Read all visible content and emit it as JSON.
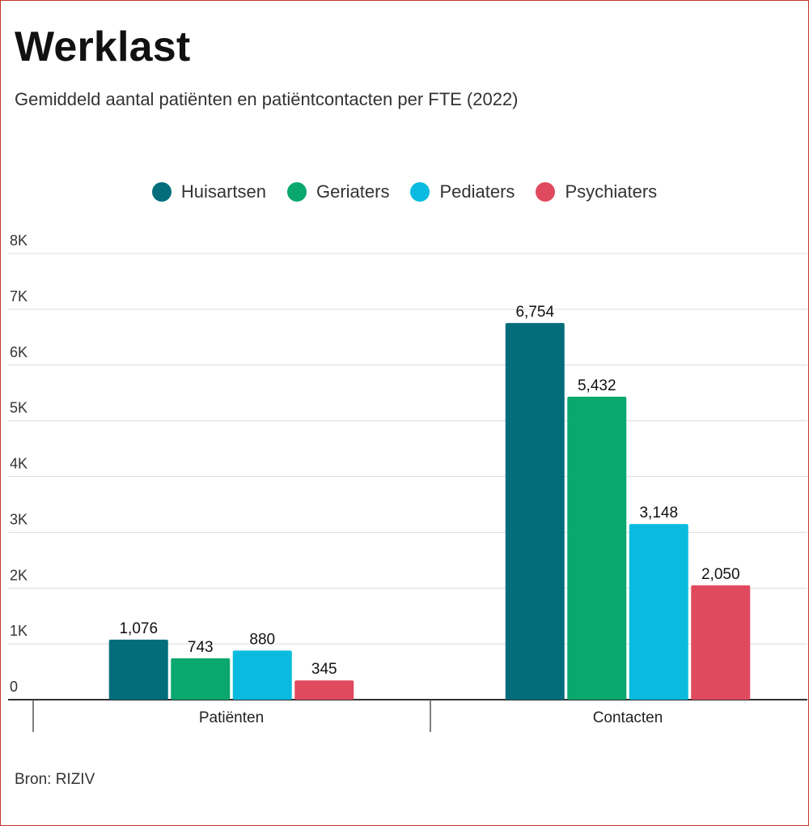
{
  "title": "Werklast",
  "subtitle": "Gemiddeld aantal patiënten en patiëntcontacten per FTE (2022)",
  "source": "Bron: RIZIV",
  "chart_data": {
    "type": "bar",
    "title": "Werklast",
    "subtitle": "Gemiddeld aantal patiënten en patiëntcontacten per FTE (2022)",
    "categories": [
      "Patiënten",
      "Contacten"
    ],
    "series": [
      {
        "name": "Huisartsen",
        "color": "#036d7c",
        "values": [
          1076,
          6754
        ],
        "labels": [
          "1,076",
          "6,754"
        ]
      },
      {
        "name": "Geriaters",
        "color": "#0aa86e",
        "values": [
          743,
          5432
        ],
        "labels": [
          "743",
          "5,432"
        ]
      },
      {
        "name": "Pediaters",
        "color": "#0abbdf",
        "values": [
          880,
          3148
        ],
        "labels": [
          "880",
          "3,148"
        ]
      },
      {
        "name": "Psychiaters",
        "color": "#e04a5e",
        "values": [
          345,
          2050
        ],
        "labels": [
          "345",
          "2,050"
        ]
      }
    ],
    "ylim": [
      0,
      8000
    ],
    "yticks": [
      {
        "value": 0,
        "label": "0"
      },
      {
        "value": 1000,
        "label": "1K"
      },
      {
        "value": 2000,
        "label": "2K"
      },
      {
        "value": 3000,
        "label": "3K"
      },
      {
        "value": 4000,
        "label": "4K"
      },
      {
        "value": 5000,
        "label": "5K"
      },
      {
        "value": 6000,
        "label": "6K"
      },
      {
        "value": 7000,
        "label": "7K"
      },
      {
        "value": 8000,
        "label": "8K"
      }
    ],
    "grid": true,
    "legend": "top-center"
  }
}
